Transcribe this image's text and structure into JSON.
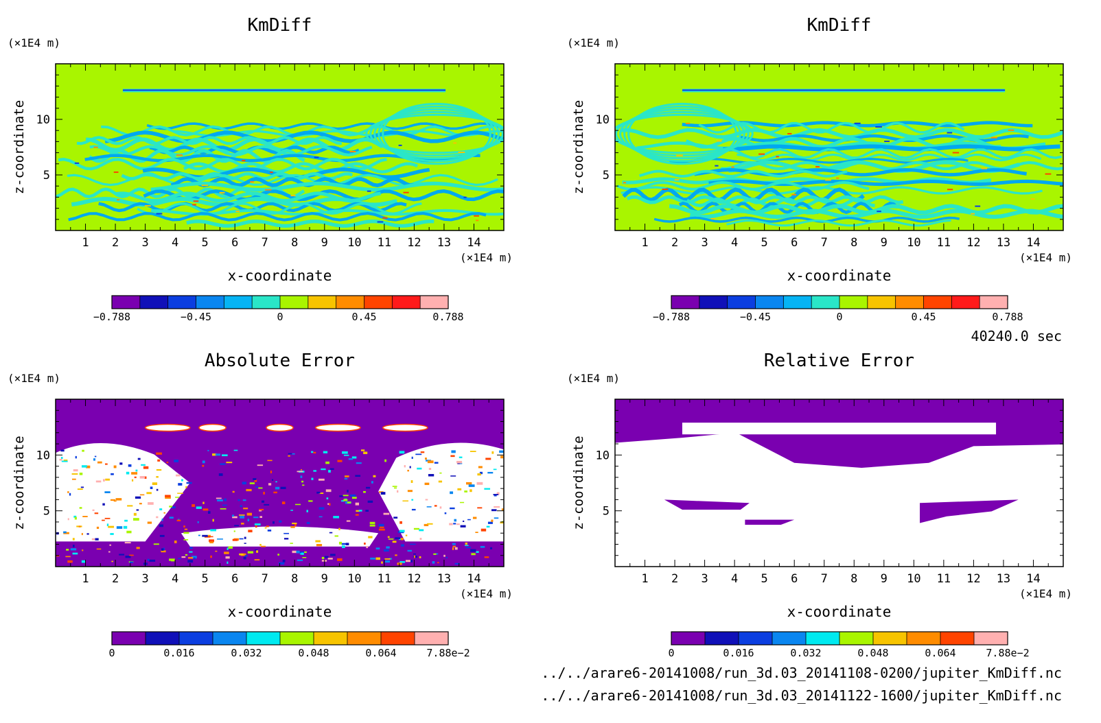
{
  "time_label": "40240.0 sec",
  "files": [
    "../../arare6-20141008/run_3d.03_20141108-0200/jupiter_KmDiff.nc",
    "../../arare6-20141008/run_3d.03_20141122-1600/jupiter_KmDiff.nc"
  ],
  "colors": {
    "field_bg": "#a9f500",
    "field_cyan": "#2ae6c8",
    "field_blue": "#00a8f0",
    "error_bg": "#7a00b0",
    "white": "#ffffff"
  },
  "chart_data": [
    {
      "type": "heatmap",
      "title": "KmDiff",
      "xlabel": "x-coordinate",
      "ylabel": "z-coordinate",
      "x_unit": "(×1E4 m)",
      "y_unit": "(×1E4 m)",
      "xlim": [
        0,
        15
      ],
      "ylim": [
        0,
        15
      ],
      "x_ticks": [
        "1",
        "2",
        "3",
        "4",
        "5",
        "6",
        "7",
        "8",
        "9",
        "10",
        "11",
        "12",
        "13",
        "14"
      ],
      "y_ticks": [
        "5",
        "10"
      ],
      "colorbar": {
        "colors": [
          "#7a00b0",
          "#1010b8",
          "#0b3ee0",
          "#0a86f0",
          "#06b4f4",
          "#2ae6c8",
          "#a9f500",
          "#f7c400",
          "#ff8c00",
          "#ff4400",
          "#ff1a1a",
          "#ffb0b0"
        ],
        "tick_labels": [
          "−0.788",
          "−0.45",
          "0",
          "0.45",
          "0.788"
        ]
      }
    },
    {
      "type": "heatmap",
      "title": "KmDiff",
      "xlabel": "x-coordinate",
      "ylabel": "z-coordinate",
      "x_unit": "(×1E4 m)",
      "y_unit": "(×1E4 m)",
      "xlim": [
        0,
        15
      ],
      "ylim": [
        0,
        15
      ],
      "x_ticks": [
        "1",
        "2",
        "3",
        "4",
        "5",
        "6",
        "7",
        "8",
        "9",
        "10",
        "11",
        "12",
        "13",
        "14"
      ],
      "y_ticks": [
        "5",
        "10"
      ],
      "colorbar": {
        "colors": [
          "#7a00b0",
          "#1010b8",
          "#0b3ee0",
          "#0a86f0",
          "#06b4f4",
          "#2ae6c8",
          "#a9f500",
          "#f7c400",
          "#ff8c00",
          "#ff4400",
          "#ff1a1a",
          "#ffb0b0"
        ],
        "tick_labels": [
          "−0.788",
          "−0.45",
          "0",
          "0.45",
          "0.788"
        ]
      }
    },
    {
      "type": "heatmap",
      "title": "Absolute Error",
      "xlabel": "x-coordinate",
      "ylabel": "z-coordinate",
      "x_unit": "(×1E4 m)",
      "y_unit": "(×1E4 m)",
      "xlim": [
        0,
        15
      ],
      "ylim": [
        0,
        15
      ],
      "x_ticks": [
        "1",
        "2",
        "3",
        "4",
        "5",
        "6",
        "7",
        "8",
        "9",
        "10",
        "11",
        "12",
        "13",
        "14"
      ],
      "y_ticks": [
        "5",
        "10"
      ],
      "colorbar": {
        "colors": [
          "#7a00b0",
          "#1010b8",
          "#0b3ee0",
          "#0a86f0",
          "#00eaf0",
          "#a9f500",
          "#f7c400",
          "#ff8c00",
          "#ff4400",
          "#ffb0b0"
        ],
        "tick_labels": [
          "0",
          "0.016",
          "0.032",
          "0.048",
          "0.064",
          "7.88e−2"
        ]
      }
    },
    {
      "type": "heatmap",
      "title": "Relative Error",
      "xlabel": "x-coordinate",
      "ylabel": "z-coordinate",
      "x_unit": "(×1E4 m)",
      "y_unit": "(×1E4 m)",
      "xlim": [
        0,
        15
      ],
      "ylim": [
        0,
        15
      ],
      "x_ticks": [
        "1",
        "2",
        "3",
        "4",
        "5",
        "6",
        "7",
        "8",
        "9",
        "10",
        "11",
        "12",
        "13",
        "14"
      ],
      "y_ticks": [
        "5",
        "10"
      ],
      "colorbar": {
        "colors": [
          "#7a00b0",
          "#1010b8",
          "#0b3ee0",
          "#0a86f0",
          "#00eaf0",
          "#a9f500",
          "#f7c400",
          "#ff8c00",
          "#ff4400",
          "#ffb0b0"
        ],
        "tick_labels": [
          "0",
          "0.016",
          "0.032",
          "0.048",
          "0.064",
          "7.88e−2"
        ]
      }
    }
  ]
}
